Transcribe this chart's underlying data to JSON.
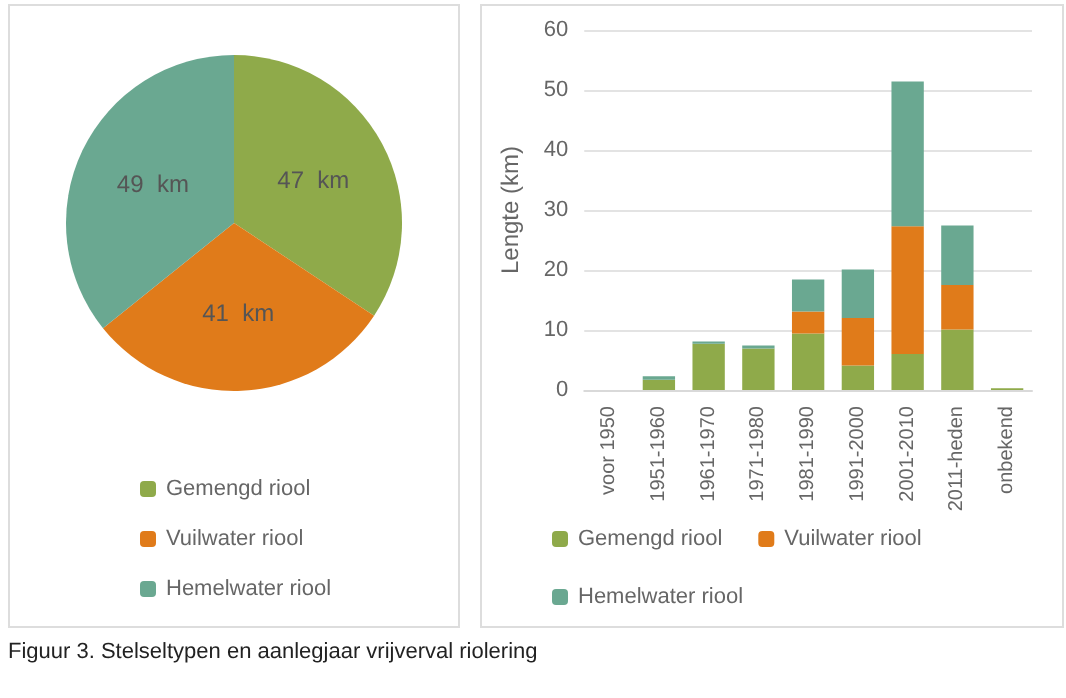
{
  "chart_data": [
    {
      "type": "pie",
      "categories": [
        "Gemengd riool",
        "Vuilwater riool",
        "Hemelwater riool"
      ],
      "values": [
        47,
        41,
        49
      ],
      "colors": [
        "#8faa4a",
        "#e07b1a",
        "#6aa891"
      ],
      "value_labels": [
        "47  km",
        "41  km",
        "49  km"
      ],
      "legend": "bottom"
    },
    {
      "type": "bar",
      "stacked": true,
      "ylabel": "Lengte (km)",
      "categories": [
        "voor 1950",
        "1951-1960",
        "1961-1970",
        "1971-1980",
        "1981-1990",
        "1991-2000",
        "2001-2010",
        "2011-heden",
        "onbekend"
      ],
      "series": [
        {
          "name": "Gemengd riool",
          "color": "#8faa4a",
          "values": [
            0,
            1.7,
            7.7,
            6.9,
            9.4,
            4.1,
            6,
            10.1,
            0.3
          ]
        },
        {
          "name": "Vuilwater riool",
          "color": "#e07b1a",
          "values": [
            0,
            0,
            0,
            0,
            3.7,
            7.9,
            21.3,
            7.4,
            0
          ]
        },
        {
          "name": "Hemelwater riool",
          "color": "#6aa891",
          "values": [
            0,
            0.6,
            0.4,
            0.5,
            5.3,
            8.1,
            24.1,
            9.9,
            0
          ]
        }
      ],
      "ylim": [
        0,
        60
      ],
      "yticks": [
        0,
        10,
        20,
        30,
        40,
        50,
        60
      ],
      "grid": "y",
      "legend": "bottom",
      "annotations": [
        "Figuur 3. Stelseltypen en aanlegjaar vrijverval riolering"
      ]
    }
  ]
}
